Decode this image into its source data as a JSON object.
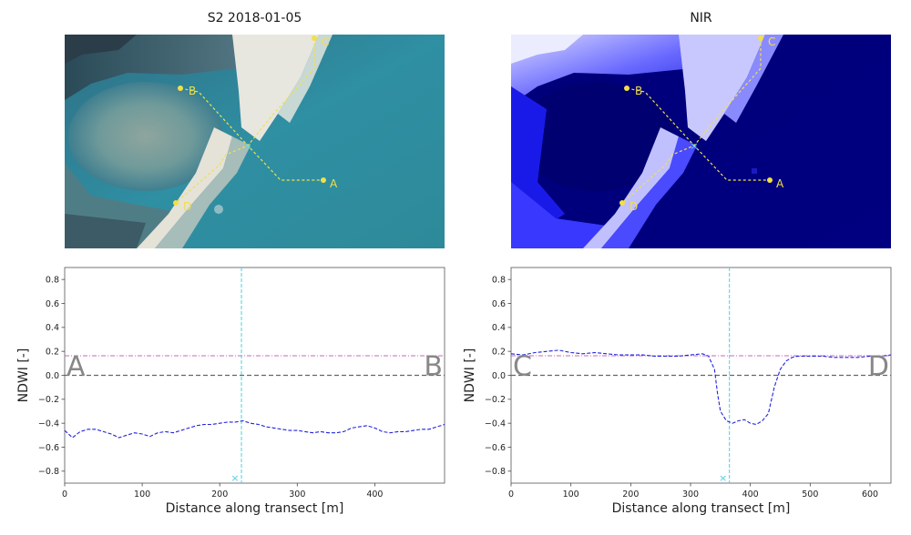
{
  "chart_data": [
    {
      "type": "image",
      "title": "S2 2018-01-05",
      "points": [
        {
          "label": "A"
        },
        {
          "label": "B"
        },
        {
          "label": "C"
        },
        {
          "label": "D"
        }
      ]
    },
    {
      "type": "image",
      "title": "NIR",
      "points": [
        {
          "label": "A"
        },
        {
          "label": "B"
        },
        {
          "label": "C"
        },
        {
          "label": "D"
        }
      ]
    },
    {
      "type": "line",
      "xlabel": "Distance along transect [m]",
      "ylabel": "NDWI [-]",
      "xlim": [
        0,
        490
      ],
      "ylim": [
        -0.9,
        0.9
      ],
      "xticks": [
        0,
        100,
        200,
        300,
        400
      ],
      "yticks": [
        -0.8,
        -0.6,
        -0.4,
        -0.2,
        0.0,
        0.2,
        0.4,
        0.6,
        0.8
      ],
      "start_label": "A",
      "end_label": "B",
      "threshold": 0.163,
      "zero_line": 0.0,
      "intersection_x": 228,
      "series": [
        {
          "x": [
            0,
            10,
            20,
            30,
            40,
            50,
            60,
            70,
            80,
            90,
            100,
            110,
            120,
            130,
            140,
            150,
            160,
            170,
            180,
            190,
            200,
            210,
            220,
            230,
            240,
            250,
            260,
            270,
            280,
            290,
            300,
            310,
            320,
            330,
            340,
            350,
            360,
            370,
            380,
            390,
            400,
            410,
            420,
            430,
            440,
            450,
            460,
            470,
            480,
            490
          ],
          "y": [
            -0.46,
            -0.52,
            -0.47,
            -0.45,
            -0.45,
            -0.47,
            -0.49,
            -0.52,
            -0.5,
            -0.48,
            -0.49,
            -0.51,
            -0.48,
            -0.47,
            -0.48,
            -0.46,
            -0.44,
            -0.42,
            -0.41,
            -0.41,
            -0.4,
            -0.39,
            -0.39,
            -0.38,
            -0.4,
            -0.41,
            -0.43,
            -0.44,
            -0.45,
            -0.46,
            -0.46,
            -0.47,
            -0.48,
            -0.47,
            -0.48,
            -0.48,
            -0.47,
            -0.44,
            -0.43,
            -0.42,
            -0.44,
            -0.47,
            -0.48,
            -0.47,
            -0.47,
            -0.46,
            -0.45,
            -0.45,
            -0.43,
            -0.41
          ]
        }
      ]
    },
    {
      "type": "line",
      "xlabel": "Distance along transect [m]",
      "ylabel": "NDWI [-]",
      "xlim": [
        0,
        635
      ],
      "ylim": [
        -0.9,
        0.9
      ],
      "xticks": [
        0,
        100,
        200,
        300,
        400,
        500,
        600
      ],
      "yticks": [
        -0.8,
        -0.6,
        -0.4,
        -0.2,
        0.0,
        0.2,
        0.4,
        0.6,
        0.8
      ],
      "start_label": "C",
      "end_label": "D",
      "threshold": 0.163,
      "zero_line": 0.0,
      "intersection_x": 365,
      "series": [
        {
          "x": [
            0,
            20,
            40,
            60,
            80,
            100,
            120,
            140,
            160,
            180,
            200,
            220,
            240,
            260,
            280,
            300,
            320,
            330,
            340,
            345,
            350,
            360,
            370,
            380,
            390,
            400,
            410,
            420,
            430,
            440,
            450,
            460,
            470,
            480,
            500,
            520,
            540,
            560,
            580,
            600,
            620,
            635
          ],
          "y": [
            0.18,
            0.17,
            0.19,
            0.2,
            0.21,
            0.19,
            0.18,
            0.19,
            0.18,
            0.17,
            0.17,
            0.17,
            0.16,
            0.16,
            0.16,
            0.17,
            0.18,
            0.16,
            0.05,
            -0.15,
            -0.3,
            -0.38,
            -0.4,
            -0.38,
            -0.37,
            -0.4,
            -0.41,
            -0.38,
            -0.32,
            -0.1,
            0.05,
            0.12,
            0.15,
            0.16,
            0.16,
            0.16,
            0.15,
            0.15,
            0.15,
            0.16,
            0.16,
            0.17
          ]
        }
      ]
    }
  ]
}
